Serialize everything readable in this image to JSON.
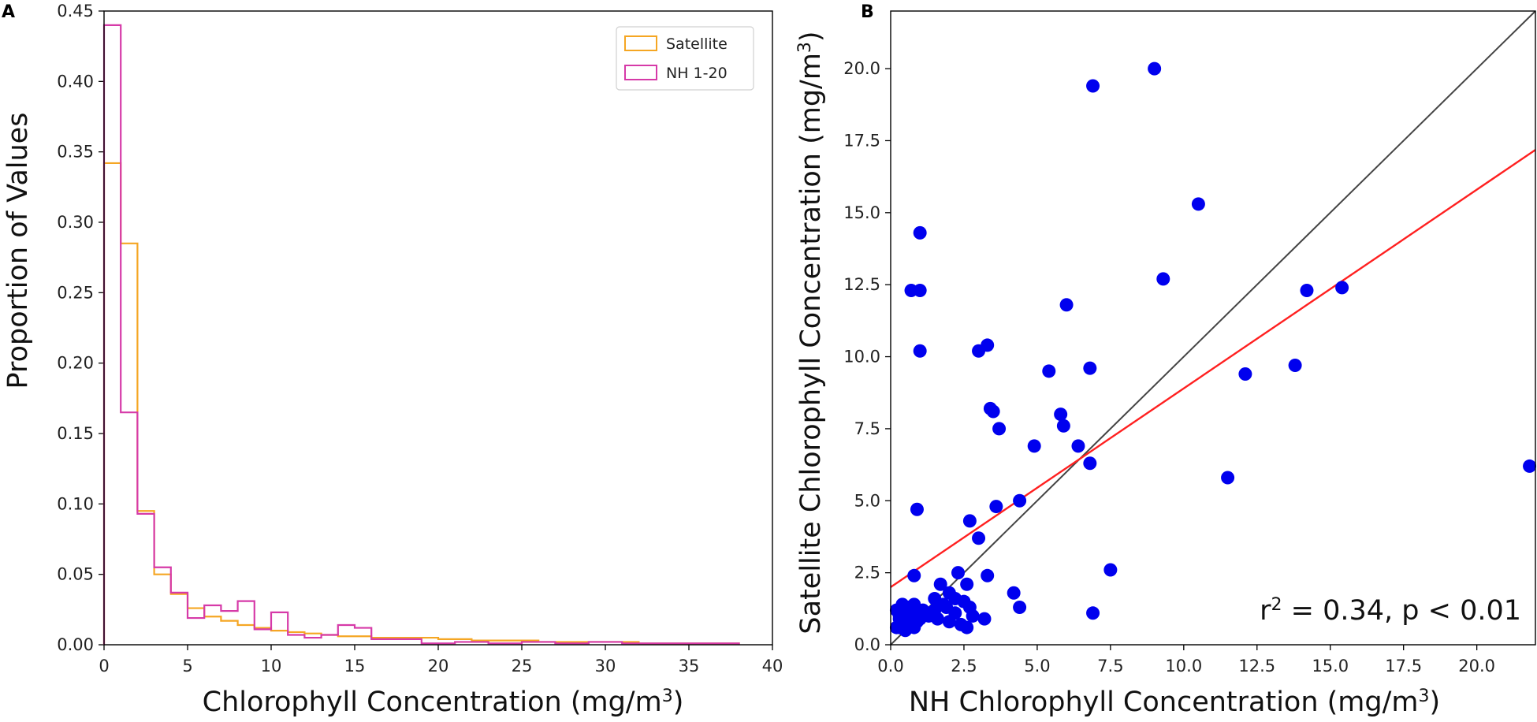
{
  "chart_data": [
    {
      "id": "A",
      "panel_label": "A",
      "type": "histogram",
      "title": "",
      "xlabel": "Chlorophyll Concentration (mg/m",
      "xlabel_sup": "3",
      "xlabel_close": ")",
      "ylabel": "Proportion of Values",
      "xlim": [
        0,
        40
      ],
      "ylim": [
        0,
        0.45
      ],
      "xticks": [
        0,
        5,
        10,
        15,
        20,
        25,
        30,
        35,
        40
      ],
      "xtick_labels": [
        "0",
        "5",
        "10",
        "15",
        "20",
        "25",
        "30",
        "35",
        "40"
      ],
      "yticks": [
        0,
        0.05,
        0.1,
        0.15,
        0.2,
        0.25,
        0.3,
        0.35,
        0.4,
        0.45
      ],
      "ytick_labels": [
        "0.00",
        "0.05",
        "0.10",
        "0.15",
        "0.20",
        "0.25",
        "0.30",
        "0.35",
        "0.40",
        "0.45"
      ],
      "legend_position": "top-right",
      "series": [
        {
          "name": "Satellite",
          "color": "#f5a623",
          "bin_edges": [
            0,
            1,
            2,
            3,
            4,
            5,
            6,
            7,
            8,
            9,
            10,
            11,
            12,
            13,
            14,
            15,
            16,
            18,
            20,
            22,
            24,
            26,
            28,
            30,
            32,
            34,
            36,
            38
          ],
          "values": [
            0.342,
            0.285,
            0.095,
            0.05,
            0.036,
            0.026,
            0.02,
            0.017,
            0.014,
            0.012,
            0.01,
            0.009,
            0.008,
            0.007,
            0.006,
            0.006,
            0.005,
            0.005,
            0.004,
            0.003,
            0.003,
            0.002,
            0.002,
            0.002,
            0.001,
            0.001,
            0.001
          ]
        },
        {
          "name": "NH 1-20",
          "color": "#d63aa8",
          "bin_edges": [
            0,
            1,
            2,
            3,
            4,
            5,
            6,
            7,
            8,
            9,
            10,
            11,
            12,
            13,
            14,
            15,
            16,
            17,
            19,
            21,
            23,
            25,
            27,
            29,
            31,
            33,
            35,
            38
          ],
          "values": [
            0.44,
            0.165,
            0.093,
            0.055,
            0.037,
            0.019,
            0.028,
            0.024,
            0.031,
            0.011,
            0.023,
            0.007,
            0.005,
            0.007,
            0.014,
            0.012,
            0.004,
            0.004,
            0.001,
            0.002,
            0.001,
            0.002,
            0.001,
            0.002,
            0.001,
            0.001,
            0.001
          ]
        }
      ]
    },
    {
      "id": "B",
      "panel_label": "B",
      "type": "scatter",
      "title": "",
      "xlabel": "NH Chlorophyll Concentration (mg/m",
      "xlabel_sup": "3",
      "xlabel_close": ")",
      "ylabel": "Satellite Chlorophyll Concentration (mg/m",
      "ylabel_sup": "3",
      "ylabel_close": ")",
      "xlim": [
        0,
        22
      ],
      "ylim": [
        0,
        22
      ],
      "xticks": [
        0,
        2.5,
        5,
        7.5,
        10,
        12.5,
        15,
        17.5,
        20
      ],
      "xtick_labels": [
        "0.0",
        "2.5",
        "5.0",
        "7.5",
        "10.0",
        "12.5",
        "15.0",
        "17.5",
        "20.0"
      ],
      "yticks": [
        0,
        2.5,
        5,
        7.5,
        10,
        12.5,
        15,
        17.5,
        20
      ],
      "ytick_labels": [
        "0.0",
        "2.5",
        "5.0",
        "7.5",
        "10.0",
        "12.5",
        "15.0",
        "17.5",
        "20.0"
      ],
      "annotation_r": "r",
      "annotation_sup": "2",
      "annotation_rest": " = 0.34, p < 0.01",
      "point_color": "#0000ee",
      "one_to_one_line": {
        "color": "#444444",
        "x": [
          0,
          22
        ],
        "y": [
          0,
          22
        ]
      },
      "fit_line": {
        "color": "#ff2020",
        "intercept": 2.0,
        "slope": 0.69
      },
      "points": [
        [
          0.2,
          0.6
        ],
        [
          0.3,
          0.9
        ],
        [
          0.4,
          1.1
        ],
        [
          0.5,
          0.7
        ],
        [
          0.6,
          1.3
        ],
        [
          0.3,
          1.0
        ],
        [
          0.2,
          1.2
        ],
        [
          0.5,
          0.5
        ],
        [
          0.6,
          0.8
        ],
        [
          0.7,
          1.0
        ],
        [
          0.8,
          0.6
        ],
        [
          0.9,
          1.2
        ],
        [
          1.0,
          0.9
        ],
        [
          0.8,
          1.4
        ],
        [
          0.4,
          1.4
        ],
        [
          0.6,
          1.1
        ],
        [
          0.7,
          0.7
        ],
        [
          0.3,
          0.6
        ],
        [
          0.9,
          0.8
        ],
        [
          1.1,
          1.2
        ],
        [
          1.3,
          1.0
        ],
        [
          1.5,
          1.2
        ],
        [
          1.6,
          0.9
        ],
        [
          1.8,
          1.4
        ],
        [
          2.0,
          0.8
        ],
        [
          2.2,
          1.1
        ],
        [
          2.4,
          0.7
        ],
        [
          2.6,
          0.6
        ],
        [
          2.8,
          1.0
        ],
        [
          3.2,
          0.9
        ],
        [
          1.7,
          2.1
        ],
        [
          2.0,
          1.8
        ],
        [
          1.9,
          1.3
        ],
        [
          2.5,
          1.5
        ],
        [
          2.6,
          2.1
        ],
        [
          1.5,
          1.6
        ],
        [
          2.3,
          2.5
        ],
        [
          0.8,
          2.4
        ],
        [
          2.7,
          1.3
        ],
        [
          2.2,
          1.6
        ],
        [
          3.3,
          2.4
        ],
        [
          4.2,
          1.8
        ],
        [
          4.4,
          1.3
        ],
        [
          6.9,
          1.1
        ],
        [
          7.5,
          2.6
        ],
        [
          3.0,
          3.7
        ],
        [
          2.7,
          4.3
        ],
        [
          3.6,
          4.8
        ],
        [
          4.4,
          5.0
        ],
        [
          0.9,
          4.7
        ],
        [
          4.9,
          6.9
        ],
        [
          3.7,
          7.5
        ],
        [
          3.4,
          8.2
        ],
        [
          3.5,
          8.1
        ],
        [
          5.8,
          8.0
        ],
        [
          5.9,
          7.6
        ],
        [
          6.4,
          6.9
        ],
        [
          6.8,
          6.3
        ],
        [
          5.4,
          9.5
        ],
        [
          6.8,
          9.6
        ],
        [
          3.0,
          10.2
        ],
        [
          3.3,
          10.4
        ],
        [
          6.0,
          11.8
        ],
        [
          1.0,
          10.2
        ],
        [
          0.7,
          12.3
        ],
        [
          1.0,
          12.3
        ],
        [
          1.0,
          14.3
        ],
        [
          6.9,
          19.4
        ],
        [
          9.0,
          20.0
        ],
        [
          9.3,
          12.7
        ],
        [
          10.5,
          15.3
        ],
        [
          11.5,
          5.8
        ],
        [
          12.1,
          9.4
        ],
        [
          13.8,
          9.7
        ],
        [
          14.2,
          12.3
        ],
        [
          15.4,
          12.4
        ],
        [
          21.8,
          6.2
        ]
      ]
    }
  ]
}
